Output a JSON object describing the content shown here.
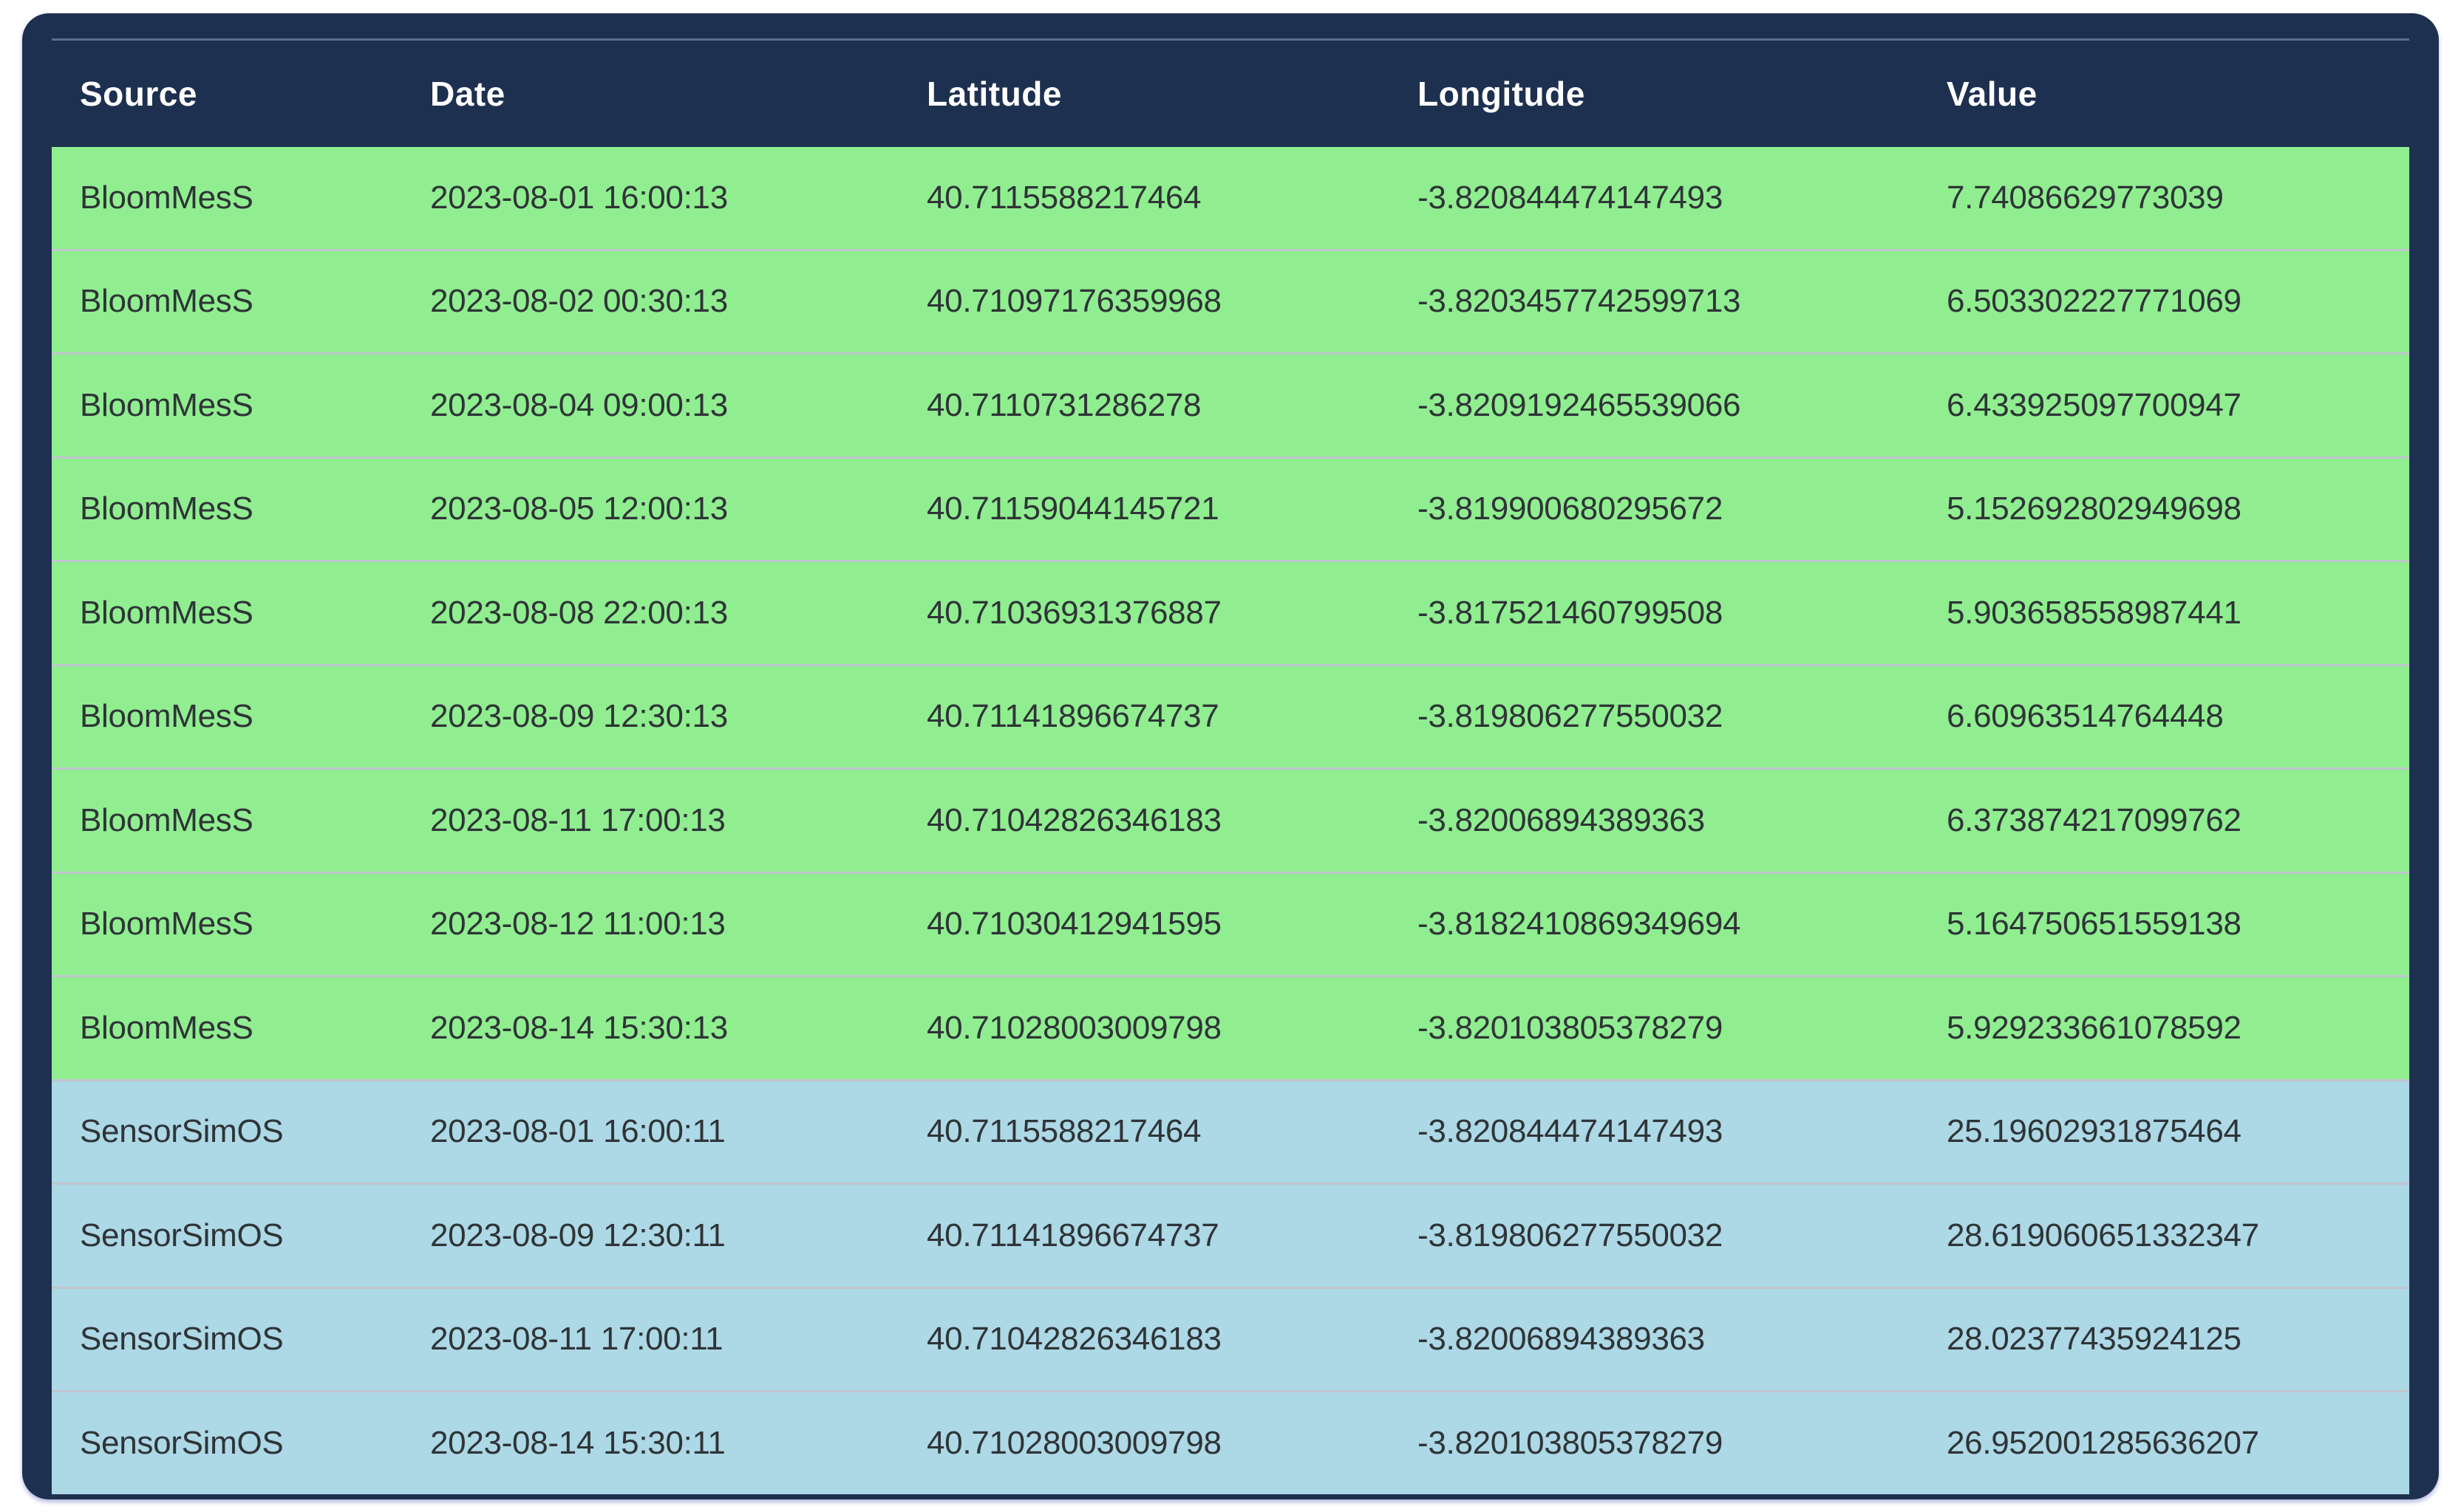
{
  "colors": {
    "page_bg": "#ffffff",
    "header_bg": "#1e3050",
    "row_green": "#90ee90",
    "row_blue": "#add8e6",
    "header_text": "#ffffff",
    "cell_text": "#2f3437"
  },
  "table": {
    "columns": [
      "Source",
      "Date",
      "Latitude",
      "Longitude",
      "Value"
    ],
    "rows": [
      {
        "band": "green",
        "source": "BloomMesS",
        "date": "2023-08-01 16:00:13",
        "latitude": "40.7115588217464",
        "longitude": "-3.820844474147493",
        "value": "7.74086629773039"
      },
      {
        "band": "green",
        "source": "BloomMesS",
        "date": "2023-08-02 00:30:13",
        "latitude": "40.71097176359968",
        "longitude": "-3.8203457742599713",
        "value": "6.503302227771069"
      },
      {
        "band": "green",
        "source": "BloomMesS",
        "date": "2023-08-04 09:00:13",
        "latitude": "40.7110731286278",
        "longitude": "-3.8209192465539066",
        "value": "6.433925097700947"
      },
      {
        "band": "green",
        "source": "BloomMesS",
        "date": "2023-08-05 12:00:13",
        "latitude": "40.71159044145721",
        "longitude": "-3.819900680295672",
        "value": "5.152692802949698"
      },
      {
        "band": "green",
        "source": "BloomMesS",
        "date": "2023-08-08 22:00:13",
        "latitude": "40.71036931376887",
        "longitude": "-3.817521460799508",
        "value": "5.903658558987441"
      },
      {
        "band": "green",
        "source": "BloomMesS",
        "date": "2023-08-09 12:30:13",
        "latitude": "40.71141896674737",
        "longitude": "-3.819806277550032",
        "value": "6.60963514764448"
      },
      {
        "band": "green",
        "source": "BloomMesS",
        "date": "2023-08-11 17:00:13",
        "latitude": "40.71042826346183",
        "longitude": "-3.82006894389363",
        "value": "6.373874217099762"
      },
      {
        "band": "green",
        "source": "BloomMesS",
        "date": "2023-08-12 11:00:13",
        "latitude": "40.71030412941595",
        "longitude": "-3.8182410869349694",
        "value": "5.164750651559138"
      },
      {
        "band": "green",
        "source": "BloomMesS",
        "date": "2023-08-14 15:30:13",
        "latitude": "40.71028003009798",
        "longitude": "-3.820103805378279",
        "value": "5.929233661078592"
      },
      {
        "band": "blue",
        "source": "SensorSimOS",
        "date": "2023-08-01 16:00:11",
        "latitude": "40.7115588217464",
        "longitude": "-3.820844474147493",
        "value": "25.19602931875464"
      },
      {
        "band": "blue",
        "source": "SensorSimOS",
        "date": "2023-08-09 12:30:11",
        "latitude": "40.71141896674737",
        "longitude": "-3.819806277550032",
        "value": "28.619060651332347"
      },
      {
        "band": "blue",
        "source": "SensorSimOS",
        "date": "2023-08-11 17:00:11",
        "latitude": "40.71042826346183",
        "longitude": "-3.82006894389363",
        "value": "28.02377435924125"
      },
      {
        "band": "blue",
        "source": "SensorSimOS",
        "date": "2023-08-14 15:30:11",
        "latitude": "40.71028003009798",
        "longitude": "-3.820103805378279",
        "value": "26.952001285636207"
      }
    ]
  }
}
